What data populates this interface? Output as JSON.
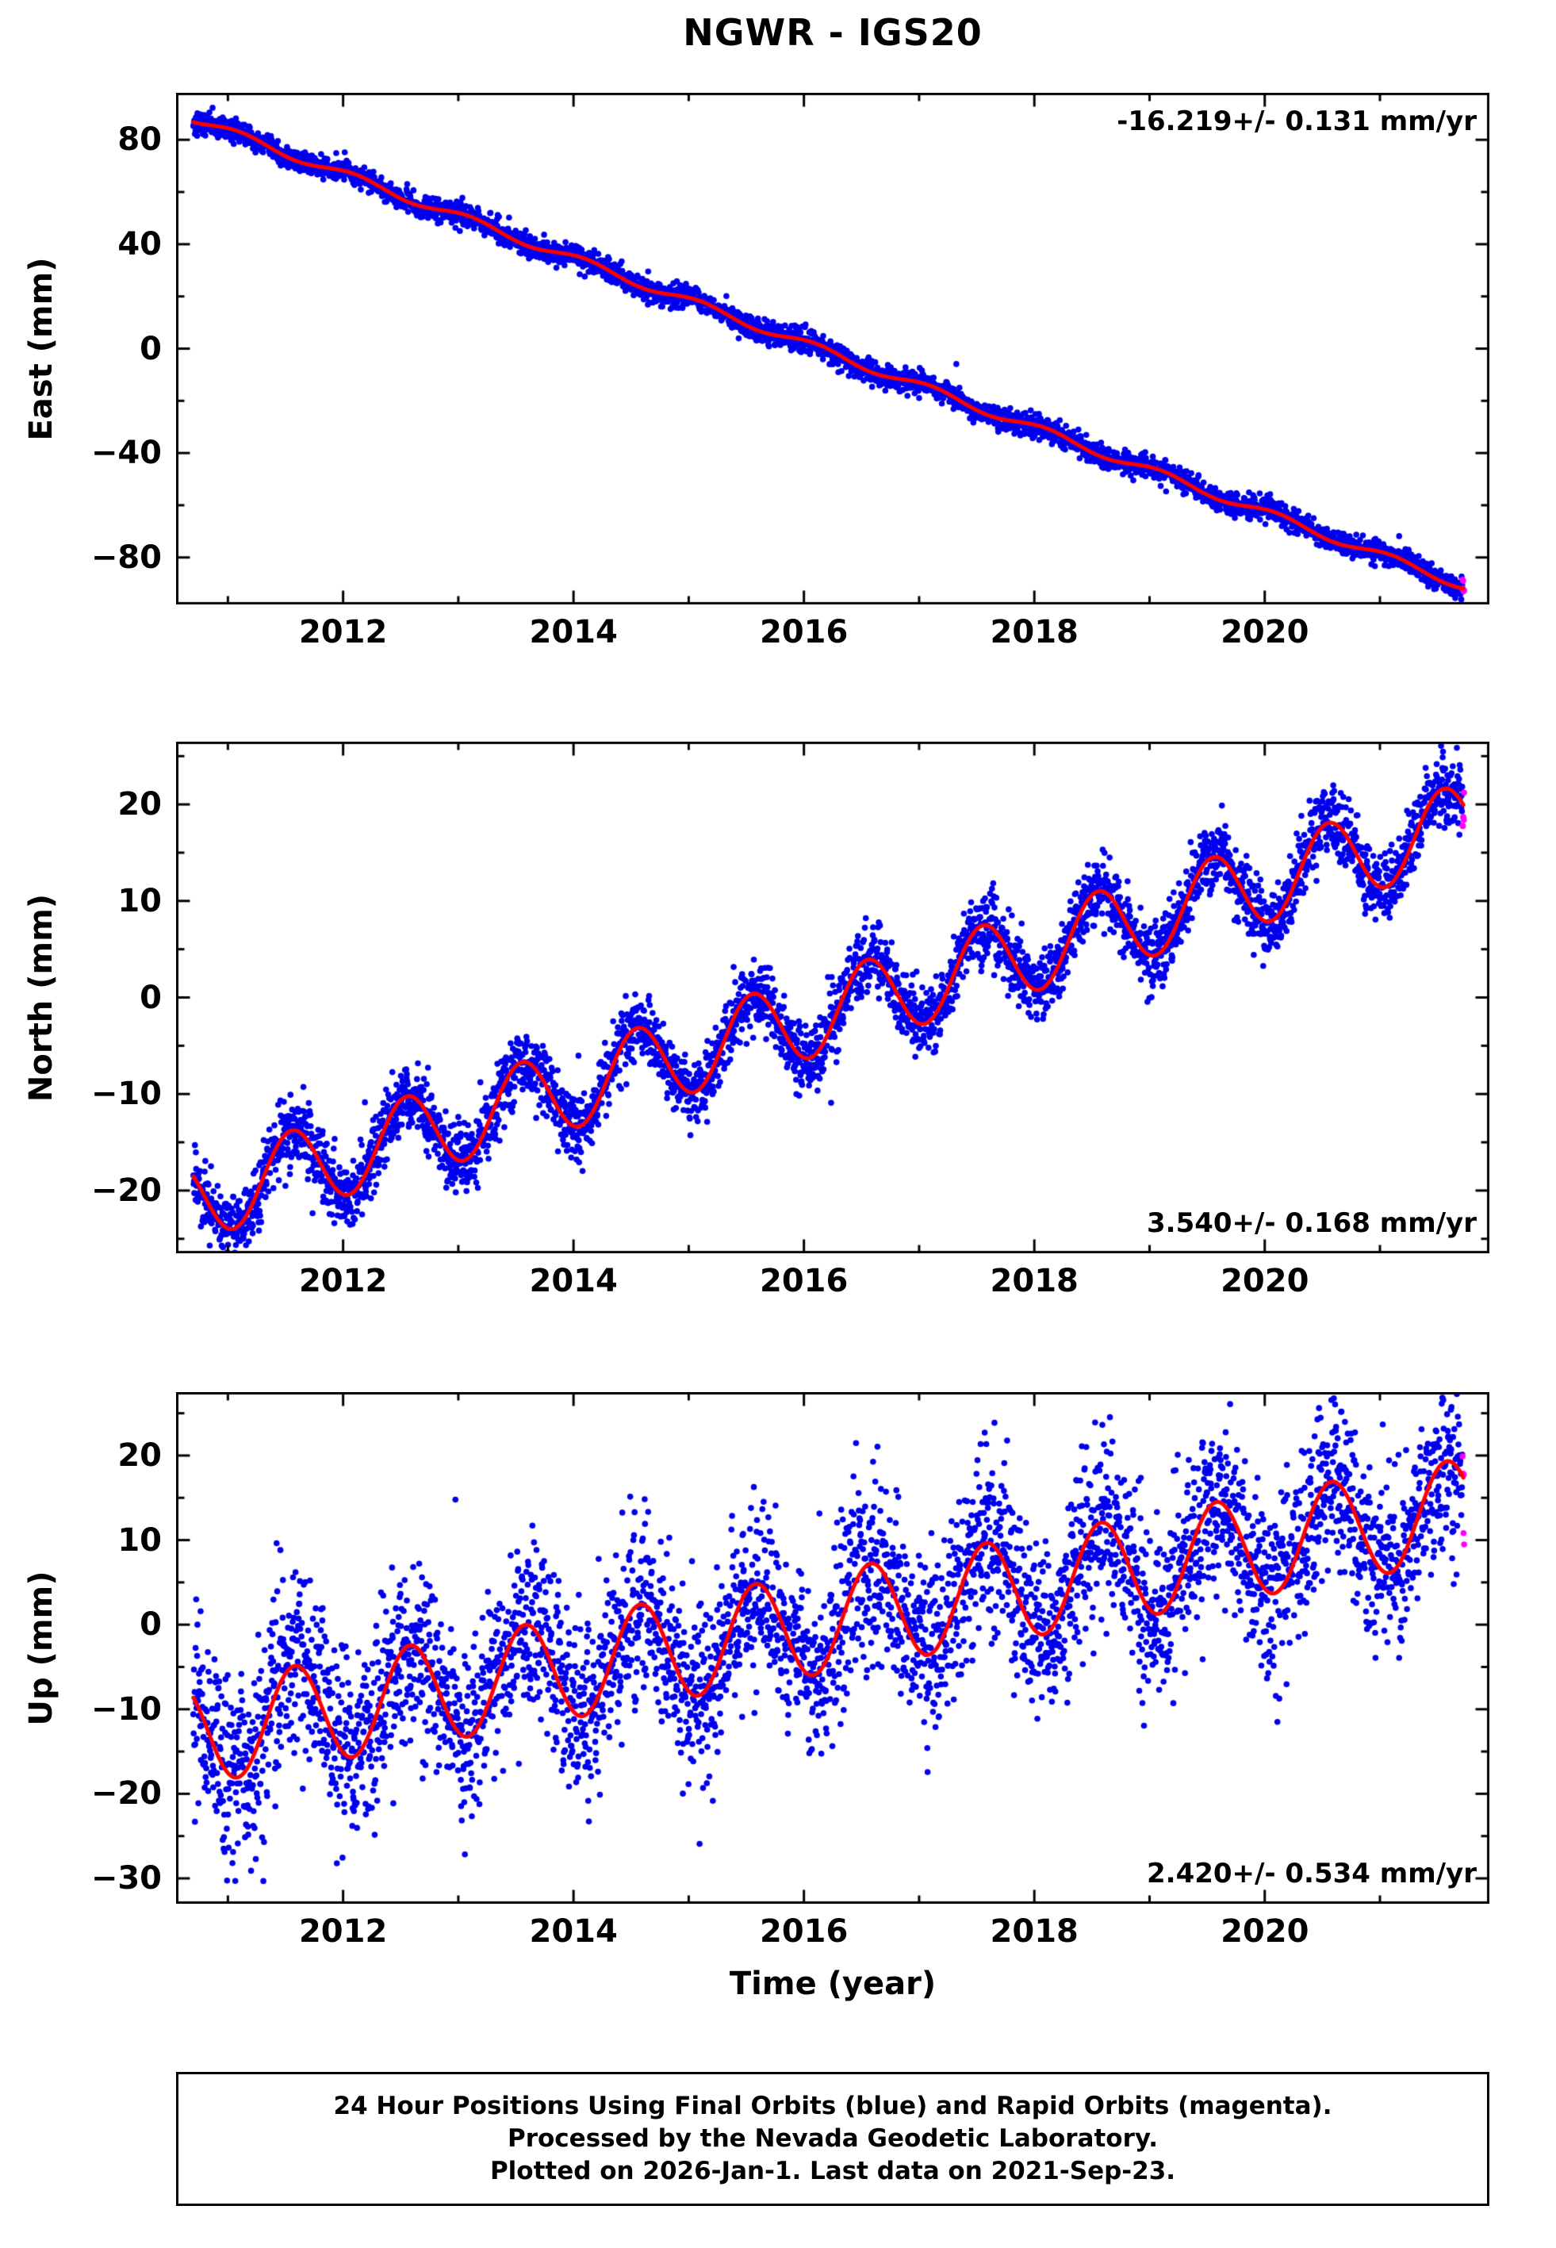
{
  "title": "NGWR - IGS20",
  "xlabel": "Time (year)",
  "footer": {
    "line1": "24 Hour Positions Using Final Orbits (blue) and Rapid Orbits (magenta).",
    "line2": "Processed by the Nevada Geodetic Laboratory.",
    "line3": "Plotted on 2026-Jan-1. Last data on 2021-Sep-23."
  },
  "colors": {
    "final_orbits": "#0000ee",
    "rapid_orbits": "#ff00ff",
    "model_fit": "#ff0000",
    "frame": "#000000"
  },
  "chart_data": [
    {
      "type": "scatter",
      "name": "east",
      "ylabel": "East (mm)",
      "rate_text": "-16.219+/- 0.131 mm/yr",
      "rate_pos": "top-right",
      "xlim": [
        2010.55,
        2021.95
      ],
      "ylim": [
        -98,
        98
      ],
      "xticks": [
        2012,
        2014,
        2016,
        2018,
        2020
      ],
      "yticks": [
        -80,
        -40,
        0,
        40,
        80
      ],
      "x_minor_step": 1,
      "y_minor_step": 20,
      "series_model": {
        "t_start": 2010.7,
        "t_end": 2021.73,
        "rapid_after": 2021.717,
        "value_at_start": 88.0,
        "slope": -16.219,
        "seasonal_amplitude": 1.6,
        "seasonal_peak_phase": 0.1,
        "noise_sigma": 2.1,
        "outlier_rate": 0.004,
        "seed": 101
      }
    },
    {
      "type": "scatter",
      "name": "north",
      "ylabel": "North (mm)",
      "rate_text": "3.540+/- 0.168 mm/yr",
      "rate_pos": "bottom-right",
      "xlim": [
        2010.55,
        2021.95
      ],
      "ylim": [
        -26.5,
        26.5
      ],
      "xticks": [
        2012,
        2014,
        2016,
        2018,
        2020
      ],
      "yticks": [
        -20,
        -10,
        0,
        10,
        20
      ],
      "x_minor_step": 1,
      "y_minor_step": 5,
      "series_model": {
        "t_start": 2010.7,
        "t_end": 2021.73,
        "rapid_after": 2021.717,
        "value_at_start": -21.0,
        "slope": 3.54,
        "seasonal_amplitude": 4.2,
        "seasonal_peak_phase": 0.55,
        "noise_sigma": 1.8,
        "outlier_rate": 0.003,
        "seed": 202
      }
    },
    {
      "type": "scatter",
      "name": "up",
      "ylabel": "Up (mm)",
      "rate_text": "2.420+/- 0.534 mm/yr",
      "rate_pos": "bottom-right",
      "xlim": [
        2010.55,
        2021.95
      ],
      "ylim": [
        -33,
        27.5
      ],
      "xticks": [
        2012,
        2014,
        2016,
        2018,
        2020
      ],
      "yticks": [
        -30,
        -20,
        -10,
        0,
        10,
        20
      ],
      "x_minor_step": 1,
      "y_minor_step": 5,
      "series_model": {
        "t_start": 2010.7,
        "t_end": 2021.73,
        "rapid_after": 2021.717,
        "value_at_start": -13.0,
        "slope": 2.42,
        "seasonal_amplitude": 6.0,
        "seasonal_peak_phase": 0.58,
        "noise_sigma": 5.2,
        "outlier_rate": 0.004,
        "seed": 303
      }
    }
  ]
}
